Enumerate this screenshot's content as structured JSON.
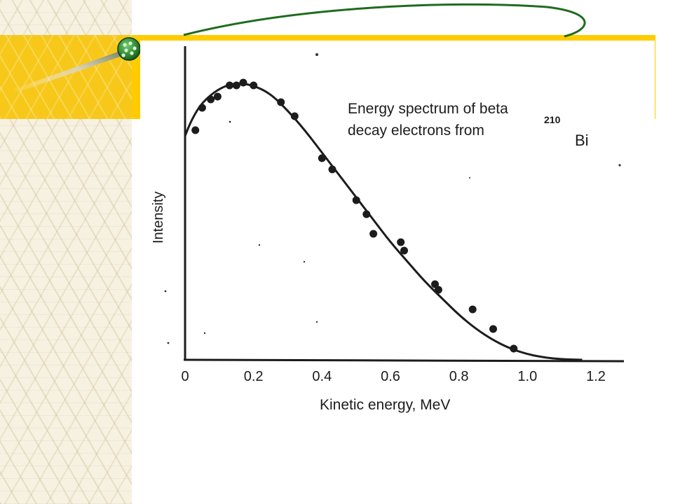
{
  "colors": {
    "header_band": "#ffcc00",
    "pattern_background": "#f6f1e1",
    "orbit_line": "#1f6b1f",
    "ink": "#1c1c1c"
  },
  "icons": {
    "bullet": "green-nucleus-ball-icon"
  },
  "chart_data": {
    "type": "scatter",
    "title_line1": "Energy spectrum of beta",
    "title_line2": "decay electrons from",
    "isotope_mass": "210",
    "isotope_symbol": "Bi",
    "xlabel": "Kinetic energy, MeV",
    "ylabel": "Intensity",
    "xlim": [
      0,
      1.3
    ],
    "ylim": [
      0,
      1.05
    ],
    "xticks": [
      "0",
      "0.2",
      "0.4",
      "0.6",
      "0.8",
      "1.0",
      "1.2"
    ],
    "xtick_values": [
      0,
      0.2,
      0.4,
      0.6,
      0.8,
      1.0,
      1.2
    ],
    "grid": false,
    "series": [
      {
        "type": "points",
        "x": [
          0.03,
          0.05,
          0.075,
          0.095,
          0.13,
          0.15,
          0.17,
          0.2,
          0.28,
          0.32,
          0.4,
          0.43,
          0.5,
          0.53,
          0.55,
          0.63,
          0.64,
          0.73,
          0.74,
          0.84,
          0.9,
          0.96
        ],
        "y": [
          0.82,
          0.9,
          0.93,
          0.94,
          0.98,
          0.98,
          0.99,
          0.98,
          0.92,
          0.87,
          0.72,
          0.68,
          0.57,
          0.52,
          0.45,
          0.42,
          0.39,
          0.27,
          0.25,
          0.18,
          0.11,
          0.04
        ]
      },
      {
        "type": "fit-curve",
        "x": [
          0,
          0.02,
          0.05,
          0.1,
          0.15,
          0.2,
          0.25,
          0.3,
          0.35,
          0.4,
          0.45,
          0.5,
          0.55,
          0.6,
          0.65,
          0.7,
          0.75,
          0.8,
          0.85,
          0.9,
          0.95,
          1.0,
          1.05,
          1.1,
          1.16
        ],
        "y": [
          0.8,
          0.86,
          0.92,
          0.97,
          0.99,
          0.98,
          0.95,
          0.89,
          0.82,
          0.74,
          0.66,
          0.58,
          0.5,
          0.42,
          0.35,
          0.28,
          0.22,
          0.16,
          0.11,
          0.07,
          0.04,
          0.02,
          0.008,
          0.002,
          0
        ]
      }
    ]
  }
}
